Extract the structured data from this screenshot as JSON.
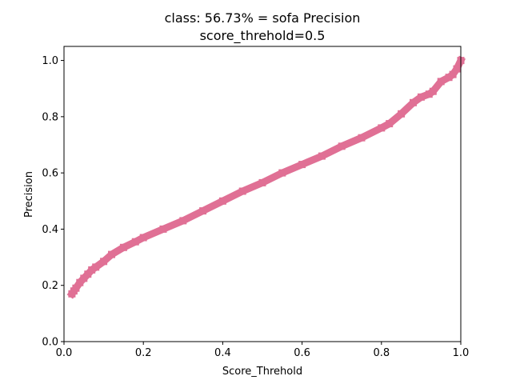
{
  "chart_data": {
    "type": "line",
    "title": "class: 56.73% = sofa Precision",
    "subtitle": "score_threhold=0.5",
    "xlabel": "Score_Threhold",
    "ylabel": "Precision",
    "xlim": [
      0.0,
      1.0
    ],
    "ylim": [
      0.0,
      1.05
    ],
    "x_ticks": [
      0.0,
      0.2,
      0.4,
      0.6,
      0.8,
      1.0
    ],
    "x_tick_labels": [
      "0.0",
      "0.2",
      "0.4",
      "0.6",
      "0.8",
      "1.0"
    ],
    "y_ticks": [
      0.0,
      0.2,
      0.4,
      0.6,
      0.8,
      1.0
    ],
    "y_tick_labels": [
      "0.0",
      "0.2",
      "0.4",
      "0.6",
      "0.8",
      "1.0"
    ],
    "grid": false,
    "series": [
      {
        "name": "Precision",
        "color": "#e07095",
        "marker": "square",
        "x": [
          0.02,
          0.025,
          0.03,
          0.04,
          0.05,
          0.06,
          0.07,
          0.08,
          0.1,
          0.12,
          0.15,
          0.18,
          0.2,
          0.25,
          0.3,
          0.35,
          0.4,
          0.45,
          0.5,
          0.55,
          0.6,
          0.65,
          0.7,
          0.75,
          0.8,
          0.82,
          0.85,
          0.88,
          0.9,
          0.92,
          0.93,
          0.95,
          0.97,
          0.98,
          0.99,
          1.0
        ],
        "values": [
          0.17,
          0.18,
          0.19,
          0.21,
          0.225,
          0.24,
          0.255,
          0.265,
          0.285,
          0.31,
          0.335,
          0.355,
          0.37,
          0.4,
          0.43,
          0.465,
          0.5,
          0.535,
          0.565,
          0.6,
          0.63,
          0.66,
          0.695,
          0.725,
          0.76,
          0.775,
          0.81,
          0.85,
          0.87,
          0.88,
          0.89,
          0.925,
          0.94,
          0.95,
          0.97,
          1.0
        ]
      }
    ]
  }
}
